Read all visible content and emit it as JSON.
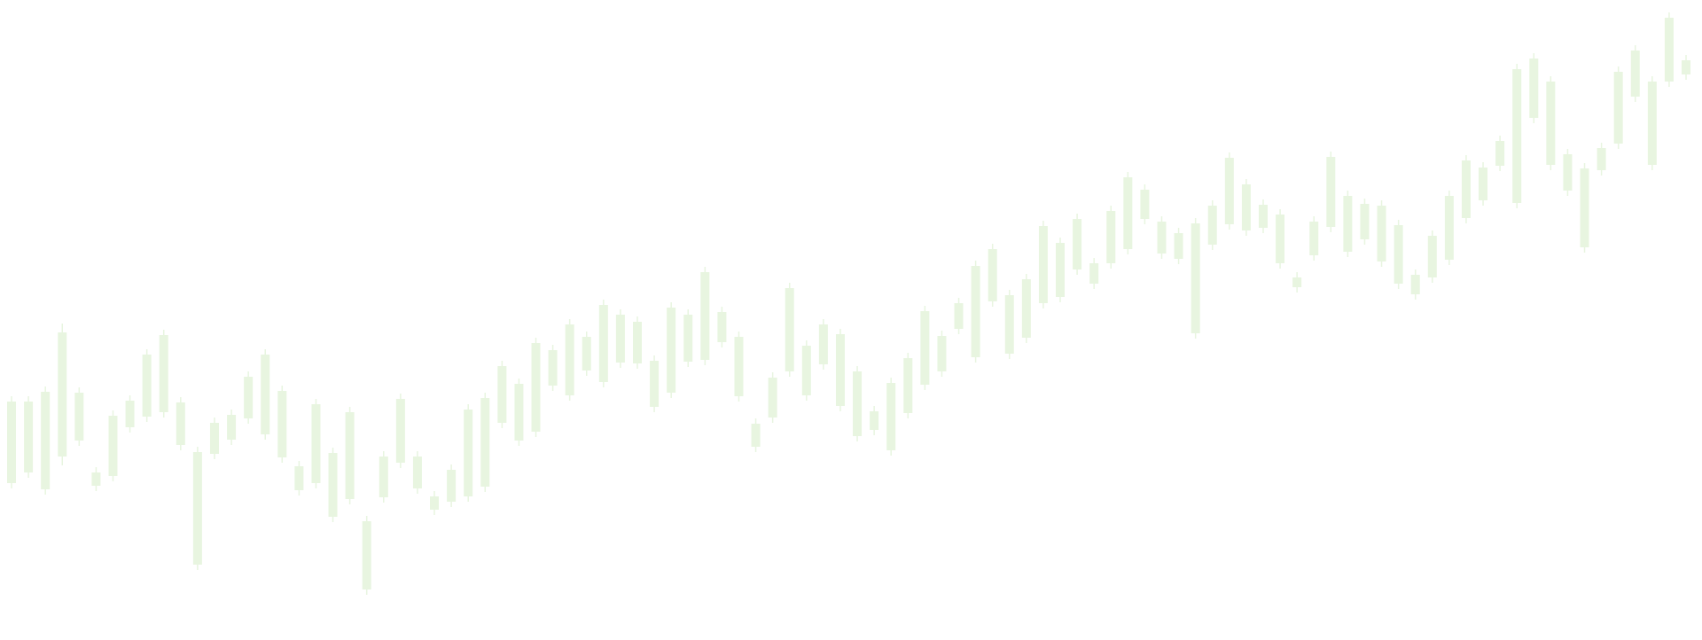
{
  "chart_data": {
    "type": "candlestick",
    "color": "#e8f5e0",
    "ylim": [
      0,
      722
    ],
    "series": [
      {
        "name": "open",
        "values": [
          177,
          189,
          170,
          207,
          225,
          174,
          185,
          240,
          252,
          257,
          220,
          85,
          210,
          226,
          250,
          232,
          206,
          169,
          177,
          139,
          159,
          57,
          161,
          200,
          171,
          147,
          156,
          162,
          173,
          245,
          225,
          235,
          287,
          276,
          304,
          291,
          313,
          312,
          263,
          279,
          314,
          316,
          336,
          275,
          218,
          251,
          303,
          276,
          311,
          264,
          230,
          237,
          214,
          256,
          288,
          303,
          351,
          319,
          382,
          323,
          341,
          380,
          387,
          418,
          402,
          425,
          441,
          475,
          436,
          430,
          346,
          446,
          469,
          462,
          465,
          425,
          398,
          434,
          466,
          438,
          452,
          427,
          402,
          390,
          409,
          429,
          476,
          496,
          535,
          493,
          589,
          536,
          507,
          443,
          530,
          560,
          613,
          536,
          630,
          638
        ]
      },
      {
        "name": "high",
        "values": [
          275,
          275,
          286,
          357,
          285,
          195,
          259,
          276,
          328,
          350,
          274,
          218,
          251,
          260,
          303,
          328,
          287,
          202,
          272,
          217,
          263,
          140,
          213,
          278,
          213,
          168,
          198,
          266,
          279,
          315,
          295,
          341,
          333,
          362,
          348,
          384,
          373,
          365,
          321,
          381,
          373,
          421,
          376,
          348,
          250,
          302,
          403,
          338,
          362,
          351,
          309,
          264,
          296,
          324,
          377,
          349,
          386,
          428,
          447,
          395,
          413,
          473,
          454,
          481,
          431,
          490,
          528,
          514,
          478,
          465,
          476,
          496,
          550,
          520,
          497,
          486,
          415,
          478,
          551,
          507,
          498,
          496,
          474,
          418,
          462,
          507,
          547,
          539,
          569,
          650,
          662,
          636,
          554,
          538,
          561,
          647,
          671,
          636,
          708,
          660
        ]
      },
      {
        "name": "low",
        "values": [
          171,
          183,
          164,
          197,
          219,
          168,
          179,
          234,
          246,
          251,
          214,
          79,
          204,
          220,
          244,
          226,
          200,
          163,
          171,
          133,
          153,
          51,
          155,
          194,
          165,
          141,
          150,
          156,
          167,
          239,
          219,
          229,
          281,
          270,
          298,
          285,
          307,
          306,
          257,
          273,
          308,
          310,
          330,
          269,
          212,
          245,
          297,
          270,
          305,
          258,
          224,
          231,
          208,
          250,
          282,
          297,
          345,
          313,
          376,
          317,
          335,
          374,
          381,
          412,
          396,
          419,
          435,
          469,
          430,
          424,
          340,
          440,
          463,
          456,
          459,
          419,
          392,
          428,
          460,
          432,
          446,
          421,
          396,
          384,
          403,
          423,
          470,
          490,
          529,
          487,
          583,
          530,
          501,
          437,
          524,
          554,
          607,
          530,
          624,
          632
        ]
      },
      {
        "name": "close",
        "values": [
          269,
          269,
          280,
          347,
          279,
          189,
          253,
          270,
          322,
          344,
          268,
          212,
          245,
          254,
          297,
          322,
          281,
          196,
          266,
          211,
          257,
          134,
          207,
          272,
          207,
          162,
          192,
          260,
          273,
          309,
          289,
          335,
          327,
          356,
          342,
          378,
          367,
          359,
          315,
          375,
          367,
          415,
          370,
          342,
          244,
          296,
          397,
          332,
          356,
          345,
          303,
          258,
          290,
          318,
          371,
          343,
          380,
          422,
          441,
          389,
          407,
          467,
          448,
          475,
          425,
          484,
          522,
          508,
          472,
          459,
          470,
          490,
          544,
          514,
          491,
          480,
          409,
          472,
          545,
          501,
          492,
          490,
          468,
          412,
          456,
          501,
          541,
          533,
          563,
          644,
          656,
          630,
          548,
          532,
          555,
          641,
          665,
          630,
          702,
          654
        ]
      }
    ]
  }
}
